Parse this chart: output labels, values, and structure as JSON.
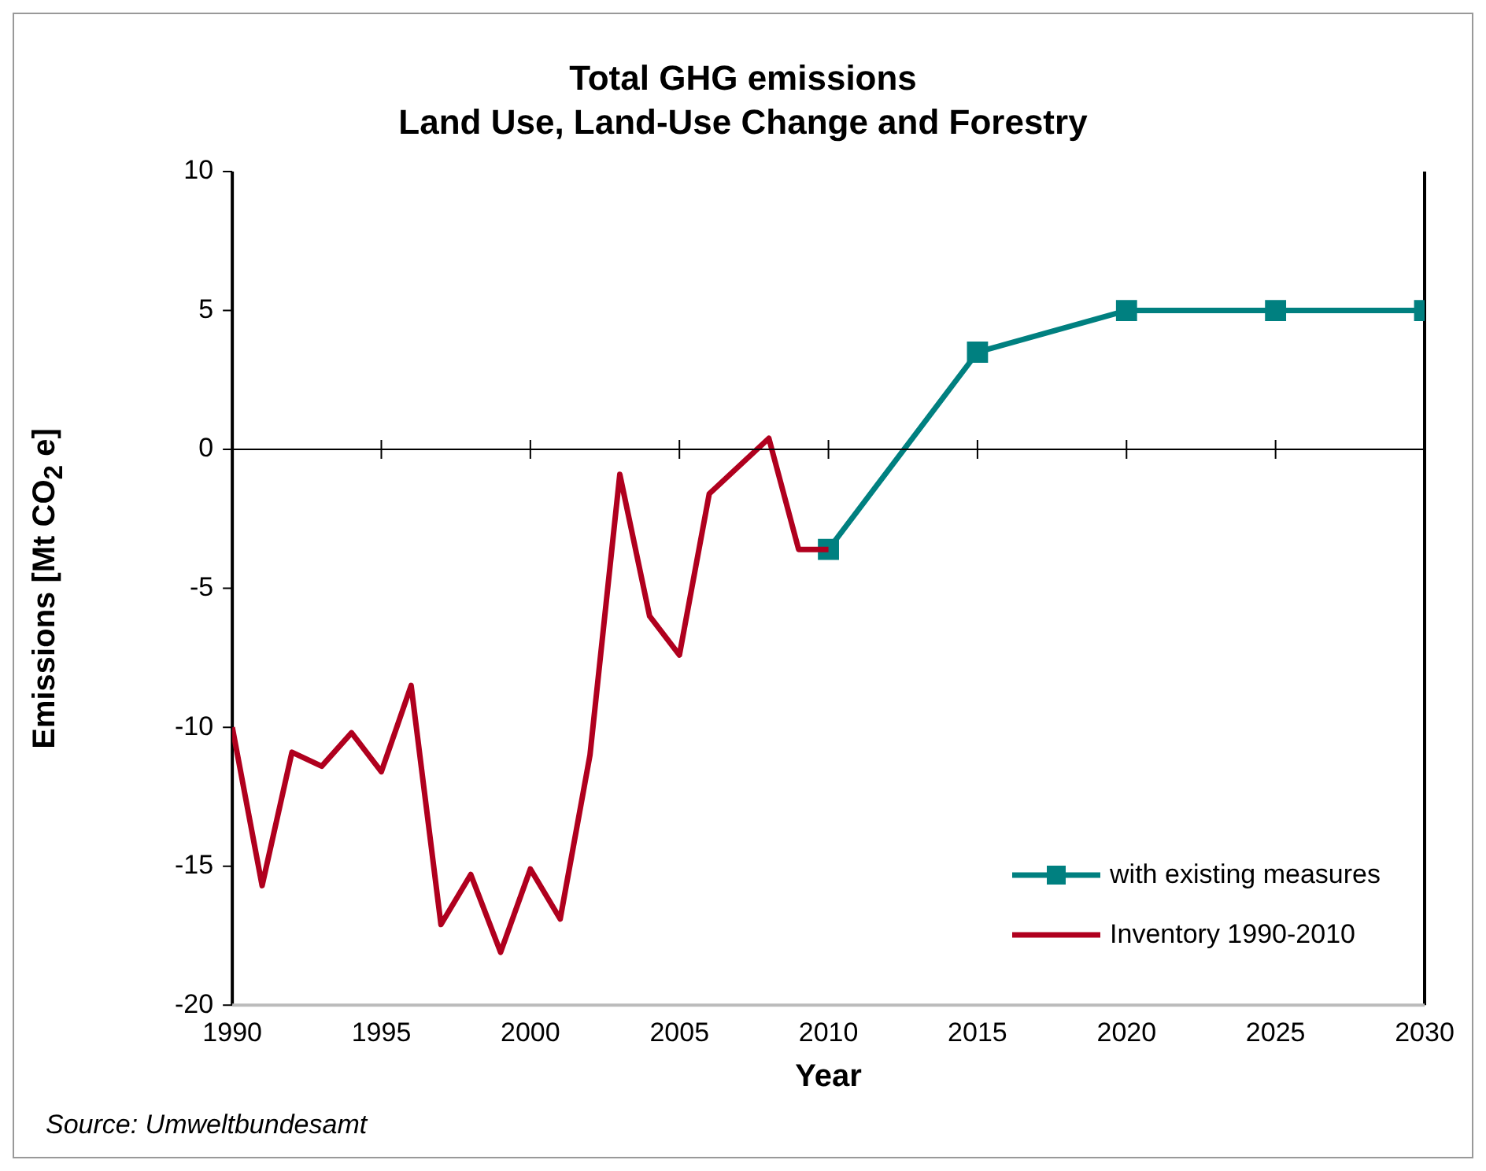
{
  "chart_data": {
    "type": "line",
    "title": "Total GHG emissions",
    "subtitle": "Land Use, Land-Use Change and Forestry",
    "xlabel": "Year",
    "ylabel": "Emissions [Mt CO$_{2}$ e]",
    "annotations": [
      "Source: Umweltbundesamt"
    ],
    "xlim": [
      1990,
      2030
    ],
    "xticks": [
      1990,
      1995,
      2000,
      2005,
      2010,
      2015,
      2020,
      2025,
      2030
    ],
    "ylim": [
      -20,
      10
    ],
    "yticks": [
      -20,
      -15,
      -10,
      -5,
      0,
      5,
      10
    ],
    "grid": false,
    "legend": "bottom right",
    "ref_lines": [
      {
        "axis": "y",
        "value": 0,
        "color": "#000000"
      }
    ],
    "series": [
      {
        "name": "with existing measures",
        "color": "#008080",
        "marker": "square",
        "x": [
          2010,
          2015,
          2020,
          2025,
          2030
        ],
        "values": [
          -3.6,
          3.5,
          5,
          5,
          5
        ]
      },
      {
        "name": "Inventory 1990-2010",
        "color": "#b0001e",
        "marker": "none",
        "x": [
          1990,
          1991,
          1992,
          1993,
          1994,
          1995,
          1996,
          1997,
          1998,
          1999,
          2000,
          2001,
          2002,
          2003,
          2004,
          2005,
          2006,
          2007,
          2008,
          2009,
          2010
        ],
        "values": [
          -10,
          -15.7,
          -10.9,
          -11.4,
          -10.2,
          -11.6,
          -8.5,
          -17.1,
          -15.3,
          -18.1,
          -15.1,
          -16.9,
          -11,
          -0.9,
          -6,
          -7.4,
          -1.6,
          -0.6,
          0.4,
          -3.6,
          -3.6
        ]
      }
    ]
  }
}
